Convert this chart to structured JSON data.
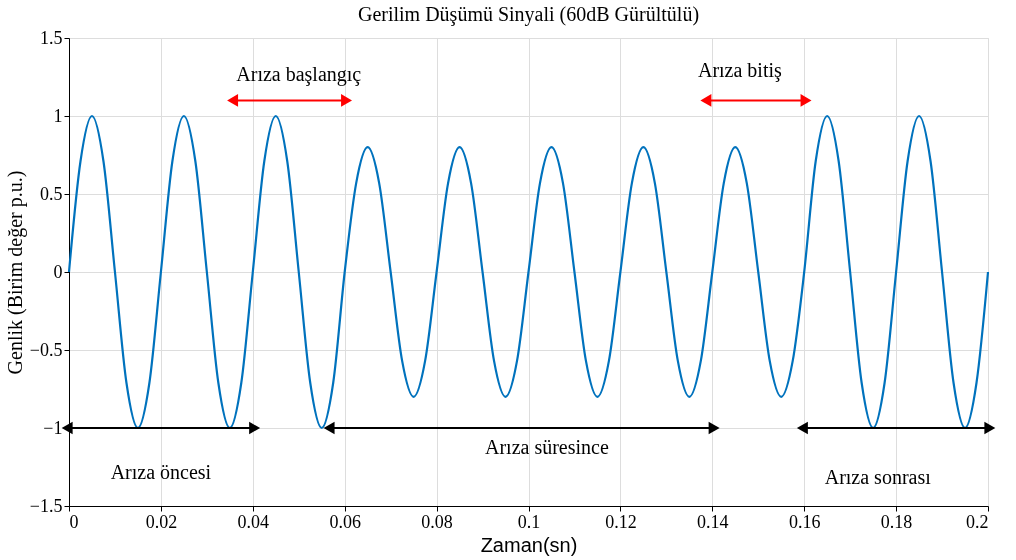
{
  "chart_data": {
    "type": "line",
    "title": "Gerilim Düşümü Sinyali (60dB Gürültülü)",
    "xlabel": "Zaman(sn)",
    "ylabel": "Genlik (Birim değer p.u.)",
    "x": [
      0,
      0.0025,
      0.005,
      0.0075,
      0.01,
      0.0125,
      0.015,
      0.0175,
      0.02,
      0.0225,
      0.025,
      0.0275,
      0.03,
      0.0325,
      0.035,
      0.0375,
      0.04,
      0.0425,
      0.045,
      0.0475,
      0.05,
      0.0525,
      0.055,
      0.0575,
      0.06,
      0.0625,
      0.065,
      0.0675,
      0.07,
      0.0725,
      0.075,
      0.0775,
      0.08,
      0.0825,
      0.085,
      0.0875,
      0.09,
      0.0925,
      0.095,
      0.0975,
      0.1,
      0.1025,
      0.105,
      0.1075,
      0.11,
      0.1125,
      0.115,
      0.1175,
      0.12,
      0.1225,
      0.125,
      0.1275,
      0.13,
      0.1325,
      0.135,
      0.1375,
      0.14,
      0.1425,
      0.145,
      0.1475,
      0.15,
      0.1525,
      0.155,
      0.1575,
      0.16,
      0.1625,
      0.165,
      0.1675,
      0.17,
      0.1725,
      0.175,
      0.1775,
      0.18,
      0.1825,
      0.185,
      0.1875,
      0.19,
      0.1925,
      0.195,
      0.1975,
      0.2
    ],
    "series": [
      {
        "color": "#0072bd",
        "values": [
          0,
          0.71,
          1,
          0.71,
          0,
          -0.71,
          -1,
          -0.71,
          0,
          0.71,
          1,
          0.71,
          0,
          -0.71,
          -1,
          -0.71,
          0,
          0.71,
          1,
          0.71,
          0,
          -0.71,
          -1,
          -0.71,
          0,
          0.57,
          0.8,
          0.57,
          0,
          -0.57,
          -0.8,
          -0.57,
          0,
          0.57,
          0.8,
          0.57,
          0,
          -0.57,
          -0.8,
          -0.57,
          0,
          0.57,
          0.8,
          0.57,
          0,
          -0.57,
          -0.8,
          -0.57,
          0,
          0.57,
          0.8,
          0.57,
          0,
          -0.57,
          -0.8,
          -0.57,
          0,
          0.57,
          0.8,
          0.57,
          0,
          -0.57,
          -0.8,
          -0.57,
          0,
          0.71,
          1,
          0.71,
          0,
          -0.71,
          -1,
          -0.71,
          0,
          0.71,
          1,
          0.71,
          0,
          -0.71,
          -1,
          -0.71,
          0
        ]
      }
    ],
    "xlim": [
      0,
      0.2
    ],
    "xticks": [
      0,
      0.02,
      0.04,
      0.06,
      0.08,
      0.1,
      0.12,
      0.14,
      0.16,
      0.18,
      0.2
    ],
    "ylim": [
      -1.5,
      1.5
    ],
    "yticks": [
      -1.5,
      -1,
      -0.5,
      0,
      0.5,
      1,
      1.5
    ],
    "grid": true,
    "marker": "none",
    "line_style": "solid",
    "annotations": [
      "Arıza başlangıç",
      "Arıza bitiş",
      "Arıza öncesi",
      "Arıza süresince",
      "Arıza sonrası"
    ]
  }
}
